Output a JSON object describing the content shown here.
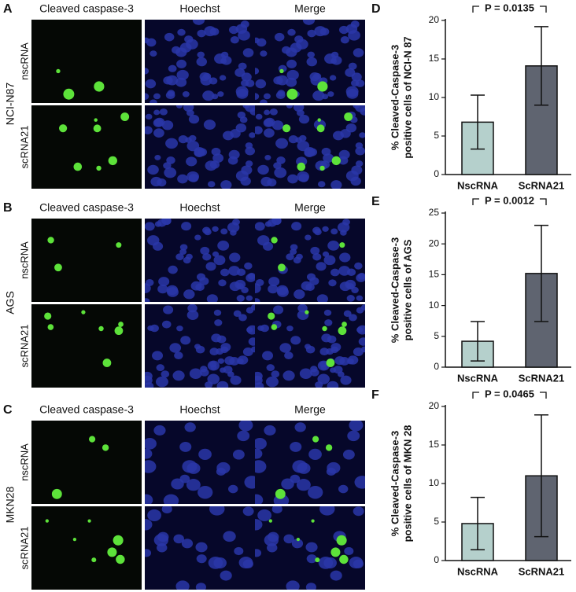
{
  "microscopy": [
    {
      "panel": "A",
      "cell_line": "NCI-N87",
      "columns": [
        "Cleaved caspase-3",
        "Hoechst",
        "Merge"
      ],
      "rows": [
        "nscRNA",
        "scRNA21"
      ]
    },
    {
      "panel": "B",
      "cell_line": "AGS",
      "columns": [
        "Cleaved caspase-3",
        "Hoechst",
        "Merge"
      ],
      "rows": [
        "nscRNA",
        "scRNA21"
      ]
    },
    {
      "panel": "C",
      "cell_line": "MKN28",
      "columns": [
        "Cleaved caspase-3",
        "Hoechst",
        "Merge"
      ],
      "rows": [
        "nscRNA",
        "scRNA21"
      ]
    }
  ],
  "chart_data": [
    {
      "type": "bar",
      "panel": "D",
      "annotation": "P = 0.0135",
      "ylabel": [
        "% Cleaved-Caspase-3",
        "positive cells of NCI-N 87"
      ],
      "categories": [
        "NscRNA",
        "ScRNA21"
      ],
      "values": [
        6.8,
        14.1
      ],
      "errors": [
        3.5,
        5.1
      ],
      "colors": [
        "#b5d0cc",
        "#5f6470"
      ],
      "ylim": [
        0,
        20
      ],
      "yticks": [
        0,
        5,
        10,
        15,
        20
      ]
    },
    {
      "type": "bar",
      "panel": "E",
      "annotation": "P = 0.0012",
      "ylabel": [
        "% Cleaved-Caspase-3",
        "positive cells of AGS"
      ],
      "categories": [
        "NscRNA",
        "ScRNA21"
      ],
      "values": [
        4.2,
        15.2
      ],
      "errors": [
        3.2,
        7.8
      ],
      "colors": [
        "#b5d0cc",
        "#5f6470"
      ],
      "ylim": [
        0,
        25
      ],
      "yticks": [
        0,
        5,
        10,
        15,
        20,
        25
      ]
    },
    {
      "type": "bar",
      "panel": "F",
      "annotation": "P = 0.0465",
      "ylabel": [
        "% Cleaved-Caspase-3",
        "positive cells of MKN 28"
      ],
      "categories": [
        "NscRNA",
        "ScRNA21"
      ],
      "values": [
        4.8,
        11.0
      ],
      "errors": [
        3.4,
        7.9
      ],
      "colors": [
        "#b5d0cc",
        "#5f6470"
      ],
      "ylim": [
        0,
        20
      ],
      "yticks": [
        0,
        5,
        10,
        15,
        20
      ]
    }
  ]
}
